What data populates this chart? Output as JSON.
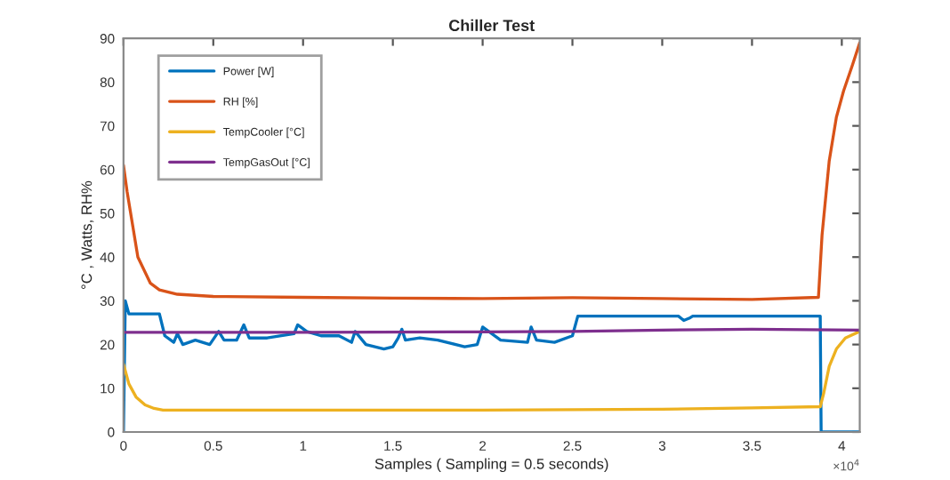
{
  "chart_data": {
    "type": "line",
    "title": "Chiller Test",
    "xlabel": "Samples ( Sampling = 0.5 seconds)",
    "ylabel": "°C , Watts, RH%",
    "xlim": [
      0,
      4.1
    ],
    "xticks": [
      0,
      0.5,
      1,
      1.5,
      2,
      2.5,
      3,
      3.5,
      4
    ],
    "ylim": [
      0,
      90
    ],
    "yticks": [
      0,
      10,
      20,
      30,
      40,
      50,
      60,
      70,
      80,
      90
    ],
    "annotations": [
      "×10$^{4}$"
    ],
    "grid": false,
    "legend": "top left",
    "marker": "none",
    "line_style": "solid",
    "series": [
      {
        "name": "Power [W]",
        "color": "#0072bd",
        "x": [
          0,
          0.01,
          0.03,
          0.2,
          0.23,
          0.28,
          0.3,
          0.33,
          0.4,
          0.48,
          0.53,
          0.56,
          0.63,
          0.67,
          0.7,
          0.8,
          0.95,
          0.97,
          1.02,
          1.1,
          1.2,
          1.27,
          1.29,
          1.35,
          1.45,
          1.5,
          1.53,
          1.55,
          1.57,
          1.65,
          1.75,
          1.9,
          1.97,
          2.0,
          2.1,
          2.25,
          2.27,
          2.3,
          2.4,
          2.5,
          2.53,
          3.09,
          3.12,
          3.15,
          3.17,
          3.88,
          3.885,
          4.1
        ],
        "values": [
          0,
          30,
          27,
          27,
          22,
          20.5,
          22.5,
          20,
          21,
          20,
          23,
          21,
          21,
          24.5,
          21.5,
          21.5,
          22.5,
          24.5,
          23,
          22,
          22,
          20.5,
          23,
          20,
          19,
          19.5,
          21.5,
          23.5,
          21,
          21.5,
          21,
          19.5,
          20,
          24,
          21,
          20.5,
          24,
          21,
          20.5,
          22,
          26.5,
          26.5,
          25.5,
          26,
          26.5,
          26.5,
          0,
          0
        ]
      },
      {
        "name": "RH [%]",
        "color": "#d95319",
        "x": [
          0,
          0.02,
          0.08,
          0.15,
          0.2,
          0.3,
          0.5,
          1.0,
          1.5,
          2.0,
          2.5,
          3.0,
          3.5,
          3.87,
          3.89,
          3.93,
          3.97,
          4.01,
          4.06,
          4.1
        ],
        "values": [
          61,
          55,
          40,
          34,
          32.5,
          31.5,
          31,
          30.8,
          30.6,
          30.5,
          30.7,
          30.5,
          30.3,
          30.8,
          45,
          62,
          72,
          78,
          84,
          89
        ]
      },
      {
        "name": "TempCooler [°C]",
        "color": "#edb120",
        "x": [
          0,
          0.03,
          0.07,
          0.12,
          0.17,
          0.22,
          0.5,
          1.0,
          2.0,
          3.0,
          3.5,
          3.88,
          3.9,
          3.93,
          3.97,
          4.02,
          4.1
        ],
        "values": [
          15.5,
          11,
          8,
          6.2,
          5.4,
          5,
          5,
          5,
          5,
          5.2,
          5.5,
          5.8,
          9,
          15,
          19,
          21.5,
          23
        ]
      },
      {
        "name": "TempGasOut [°C]",
        "color": "#7e2f8e",
        "x": [
          0,
          1.0,
          2.0,
          2.5,
          3.0,
          3.5,
          4.1
        ],
        "values": [
          22.8,
          22.8,
          22.9,
          23,
          23.3,
          23.5,
          23.3
        ]
      }
    ]
  }
}
